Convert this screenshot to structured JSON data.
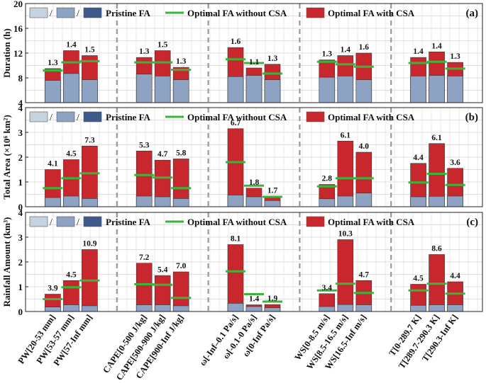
{
  "colors": {
    "pristine_light": "#c5d2e0",
    "pristine_mid": "#8ea2c3",
    "pristine_dark": "#3e5a8c",
    "with_csa": "#c8282d",
    "without_csa": "#3cb43c",
    "separator": "#999999",
    "grid": "#d4d4d4"
  },
  "legend": {
    "slash1": "/",
    "slash2": "/",
    "pristine_label": "Pristine FA",
    "without_label": "Optimal FA without CSA",
    "with_label": "Optimal FA with CSA"
  },
  "chart_data": {
    "type": "bar",
    "categories": [
      "PW[20-53 mm]",
      "PW[53-57 mm]",
      "PW[57-Inf mm]",
      "CAPE[0-500 J/kg]",
      "CAPE[500-900 J/kg]",
      "CAPE[900-Inf J/kg]",
      "ω[-Inf–0.1 Pa/s]",
      "ω[-0.1-0 Pa/s]",
      "ω[0-Inf Pa/s]",
      "WS[0-8.5 m/s]",
      "WS[8.5-16.5 m/s]",
      "WS[16.5-Inf m/s]",
      "T[0-289.7 K]",
      "T[289.7-290.3 K]",
      "T[290.3-Inf K]"
    ],
    "groups": [
      {
        "label": "PW",
        "start": 0,
        "count": 3
      },
      {
        "label": "CAPE",
        "start": 3,
        "count": 3
      },
      {
        "label": "ω",
        "start": 6,
        "count": 3
      },
      {
        "label": "WS",
        "start": 9,
        "count": 3
      },
      {
        "label": "T",
        "start": 12,
        "count": 3
      }
    ],
    "panels": [
      {
        "key": "a",
        "panel_label": "(a)",
        "ylabel": "Duration (h)",
        "ylim": [
          4,
          20
        ],
        "yticks": [
          4,
          8,
          12,
          16,
          20
        ],
        "tick_labels": [
          "4",
          "8",
          "12",
          "16",
          "20"
        ],
        "pristine": [
          7.6,
          8.7,
          7.7,
          8.6,
          8.3,
          7.7,
          8.2,
          8.4,
          7.7,
          8.1,
          8.3,
          7.7,
          8.3,
          8.4,
          8.3
        ],
        "without_csa": [
          9.2,
          10.5,
          10.7,
          10.5,
          10.5,
          9.3,
          11.0,
          10.4,
          8.7,
          10.6,
          10.2,
          9.8,
          10.4,
          10.6,
          9.5
        ],
        "with_csa": [
          9.5,
          12.4,
          11.6,
          11.3,
          12.4,
          9.7,
          12.9,
          9.6,
          10.2,
          10.9,
          11.6,
          12.0,
          11.3,
          12.2,
          10.5
        ],
        "labels": [
          "1.3",
          "1.4",
          "1.5",
          "1.3",
          "1.5",
          "1.3",
          "1.6",
          "1.1",
          "1.3",
          "1.3",
          "1.4",
          "1.6",
          "1.4",
          "1.4",
          "1.3"
        ]
      },
      {
        "key": "b",
        "panel_label": "(b)",
        "ylabel": "Total Area (×10⁶ km²)",
        "ylim": [
          0,
          4
        ],
        "yticks": [
          0,
          1,
          2,
          3,
          4
        ],
        "tick_labels": [
          "0",
          "1",
          "2",
          "3",
          "4"
        ],
        "pristine": [
          0.37,
          0.43,
          0.33,
          0.43,
          0.4,
          0.33,
          0.47,
          0.4,
          0.25,
          0.32,
          0.43,
          0.55,
          0.4,
          0.42,
          0.43
        ],
        "without_csa": [
          0.75,
          1.15,
          1.35,
          1.28,
          1.18,
          0.75,
          1.8,
          0.85,
          0.4,
          0.82,
          1.15,
          1.15,
          0.98,
          1.33,
          0.88
        ],
        "with_csa": [
          1.5,
          1.9,
          2.45,
          2.25,
          1.88,
          1.93,
          3.15,
          0.75,
          0.42,
          0.9,
          2.65,
          2.2,
          1.75,
          2.55,
          1.55
        ],
        "labels": [
          "4.1",
          "4.5",
          "7.3",
          "5.3",
          "4.7",
          "5.8",
          "6.7",
          "1.8",
          "1.7",
          "2.8",
          "6.1",
          "4.0",
          "4.4",
          "6.1",
          "3.6"
        ]
      },
      {
        "key": "c",
        "panel_label": "(c)",
        "ylabel": "Rainfall Amount (km³)",
        "ylim": [
          0,
          4
        ],
        "yticks": [
          0,
          1,
          2,
          3,
          4
        ],
        "tick_labels": [
          "0",
          "1",
          "2",
          "3",
          "4"
        ],
        "pristine": [
          0.18,
          0.27,
          0.23,
          0.27,
          0.27,
          0.23,
          0.33,
          0.2,
          0.15,
          0.2,
          0.28,
          0.27,
          0.25,
          0.27,
          0.27
        ],
        "without_csa": [
          0.5,
          0.98,
          1.25,
          1.1,
          1.08,
          0.55,
          1.62,
          0.7,
          0.4,
          0.85,
          1.12,
          0.75,
          0.85,
          1.12,
          0.72
        ],
        "with_csa": [
          0.7,
          1.25,
          2.5,
          1.95,
          1.45,
          1.6,
          2.7,
          0.27,
          0.28,
          0.72,
          2.9,
          1.25,
          1.1,
          2.3,
          1.2
        ],
        "labels": [
          "3.9",
          "4.5",
          "10.9",
          "7.2",
          "5.4",
          "7.0",
          "8.1",
          "1.4",
          "1.9",
          "3.4",
          "10.3",
          "4.7",
          "4.5",
          "8.6",
          "4.4"
        ]
      }
    ]
  }
}
